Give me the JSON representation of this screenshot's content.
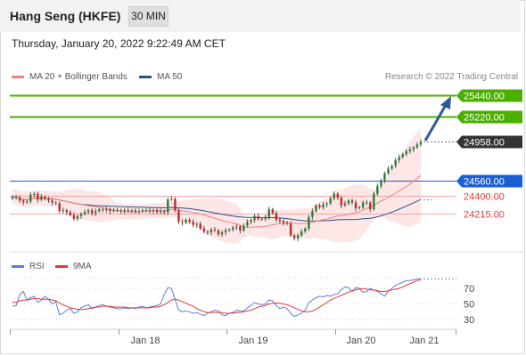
{
  "header": {
    "title": "Hang Seng (HKFE)",
    "timeframe": "30 MIN",
    "datetime": "Thursday, January 20, 2022 9:22:49 AM CET"
  },
  "legend": {
    "ma20_label": "MA 20 + Bollinger Bands",
    "ma50_label": "MA 50",
    "credit": "Research © 2022 Trading Central"
  },
  "rsi_legend": {
    "rsi_label": "RSI",
    "ma_label": "9MA"
  },
  "colors": {
    "green": "#4caf00",
    "blue": "#1a5fd6",
    "red": "#e53935",
    "dark": "#333333",
    "ma20": "#f08080",
    "ma50": "#2a4f8f",
    "bollinger_fill": "#fde3e3",
    "arrow": "#2e5b9a",
    "rsi": "#5c7fd6",
    "rsi_ma": "#e53935"
  },
  "chart_data": [
    {
      "type": "candlestick",
      "y_range": [
        24080,
        25520
      ],
      "x_labels": [
        "Jan 18",
        "Jan 19",
        "Jan 20",
        "Jan 21"
      ],
      "levels": [
        {
          "value": 25440,
          "label": "25440.00",
          "kind": "resistance"
        },
        {
          "value": 25220,
          "label": "25220.00",
          "kind": "resistance"
        },
        {
          "value": 24958,
          "label": "24958.00",
          "kind": "last"
        },
        {
          "value": 24560,
          "label": "24560.00",
          "kind": "pivot"
        },
        {
          "value": 24400,
          "label": "24400.00",
          "kind": "support"
        },
        {
          "value": 24215,
          "label": "24215.00",
          "kind": "support"
        }
      ],
      "series": [
        {
          "name": "MA 20 + Bollinger Bands"
        },
        {
          "name": "MA 50"
        }
      ],
      "closes": [
        24390,
        24380,
        24350,
        24330,
        24340,
        24410,
        24420,
        24360,
        24390,
        24370,
        24350,
        24330,
        24320,
        24240,
        24250,
        24230,
        24200,
        24160,
        24190,
        24210,
        24230,
        24250,
        24220,
        24240,
        24260,
        24250,
        24260,
        24240,
        24250,
        24250,
        24240,
        24250,
        24240,
        24250,
        24240,
        24240,
        24250,
        24250,
        24240,
        24250,
        24230,
        24240,
        24230,
        24360,
        24370,
        24250,
        24130,
        24120,
        24150,
        24130,
        24100,
        24110,
        24060,
        24030,
        24020,
        24050,
        24040,
        24000,
        24020,
        24040,
        24050,
        24070,
        24080,
        24040,
        24090,
        24130,
        24150,
        24190,
        24160,
        24160,
        24180,
        24260,
        24220,
        24150,
        24140,
        24120,
        24110,
        23990,
        23960,
        23990,
        24030,
        24060,
        24180,
        24240,
        24300,
        24280,
        24310,
        24320,
        24370,
        24420,
        24380,
        24300,
        24320,
        24350,
        24330,
        24270,
        24280,
        24330,
        24330,
        24260,
        24420,
        24500,
        24560,
        24630,
        24680,
        24710,
        24770,
        24800,
        24830,
        24860,
        24880,
        24900,
        24930,
        24958
      ],
      "opens": [
        24370,
        24390,
        24380,
        24350,
        24330,
        24340,
        24410,
        24420,
        24360,
        24390,
        24370,
        24350,
        24330,
        24320,
        24240,
        24250,
        24230,
        24200,
        24160,
        24190,
        24210,
        24230,
        24250,
        24220,
        24240,
        24260,
        24250,
        24260,
        24240,
        24250,
        24250,
        24240,
        24250,
        24240,
        24250,
        24240,
        24240,
        24250,
        24250,
        24240,
        24250,
        24230,
        24240,
        24230,
        24360,
        24370,
        24250,
        24130,
        24120,
        24150,
        24130,
        24100,
        24110,
        24060,
        24030,
        24020,
        24050,
        24040,
        24000,
        24020,
        24040,
        24050,
        24070,
        24080,
        24040,
        24090,
        24130,
        24150,
        24190,
        24160,
        24160,
        24180,
        24260,
        24220,
        24150,
        24140,
        24120,
        24110,
        23990,
        23960,
        23990,
        24030,
        24060,
        24180,
        24240,
        24300,
        24280,
        24310,
        24320,
        24370,
        24420,
        24380,
        24300,
        24320,
        24350,
        24330,
        24270,
        24280,
        24330,
        24330,
        24260,
        24420,
        24500,
        24560,
        24630,
        24680,
        24710,
        24770,
        24800,
        24830,
        24860,
        24880,
        24900,
        24930
      ]
    },
    {
      "type": "line",
      "title": "RSI",
      "y_ticks": [
        30,
        50,
        70
      ],
      "series": [
        {
          "name": "RSI",
          "values": [
            47,
            48,
            62,
            66,
            55,
            58,
            60,
            52,
            55,
            60,
            56,
            50,
            53,
            36,
            38,
            42,
            44,
            38,
            40,
            45,
            47,
            49,
            44,
            46,
            48,
            49,
            47,
            46,
            45,
            44,
            44,
            45,
            44,
            45,
            44,
            46,
            47,
            45,
            46,
            47,
            48,
            50,
            62,
            71,
            70,
            56,
            42,
            40,
            41,
            40,
            38,
            39,
            37,
            35,
            38,
            40,
            42,
            41,
            36,
            35,
            38,
            39,
            42,
            41,
            41,
            45,
            48,
            52,
            50,
            49,
            50,
            55,
            54,
            48,
            44,
            46,
            44,
            38,
            34,
            36,
            38,
            42,
            52,
            55,
            58,
            60,
            59,
            61,
            60,
            62,
            63,
            68,
            72,
            71,
            66,
            71,
            70,
            65,
            66,
            70,
            68,
            66,
            63,
            60,
            66,
            70,
            74,
            76,
            78,
            80,
            80,
            81,
            82,
            82
          ]
        },
        {
          "name": "9MA",
          "values": [
            52,
            52,
            54,
            55,
            55,
            56,
            57,
            57,
            56,
            56,
            56,
            55,
            54,
            51,
            49,
            47,
            45,
            44,
            43,
            43,
            43,
            44,
            45,
            46,
            46,
            47,
            47,
            47,
            46,
            46,
            46,
            46,
            45,
            45,
            45,
            45,
            45,
            45,
            45,
            46,
            46,
            47,
            49,
            52,
            55,
            56,
            55,
            53,
            51,
            49,
            47,
            44,
            42,
            40,
            39,
            39,
            39,
            39,
            39,
            38,
            38,
            38,
            39,
            39,
            40,
            41,
            42,
            44,
            46,
            47,
            48,
            50,
            51,
            51,
            51,
            50,
            49,
            47,
            45,
            43,
            41,
            40,
            40,
            41,
            43,
            46,
            49,
            52,
            55,
            57,
            59,
            61,
            63,
            65,
            67,
            68,
            69,
            70,
            69,
            68,
            68,
            67,
            66,
            66,
            67,
            68,
            69,
            70,
            72,
            74,
            76,
            78,
            80,
            81
          ]
        }
      ]
    }
  ]
}
